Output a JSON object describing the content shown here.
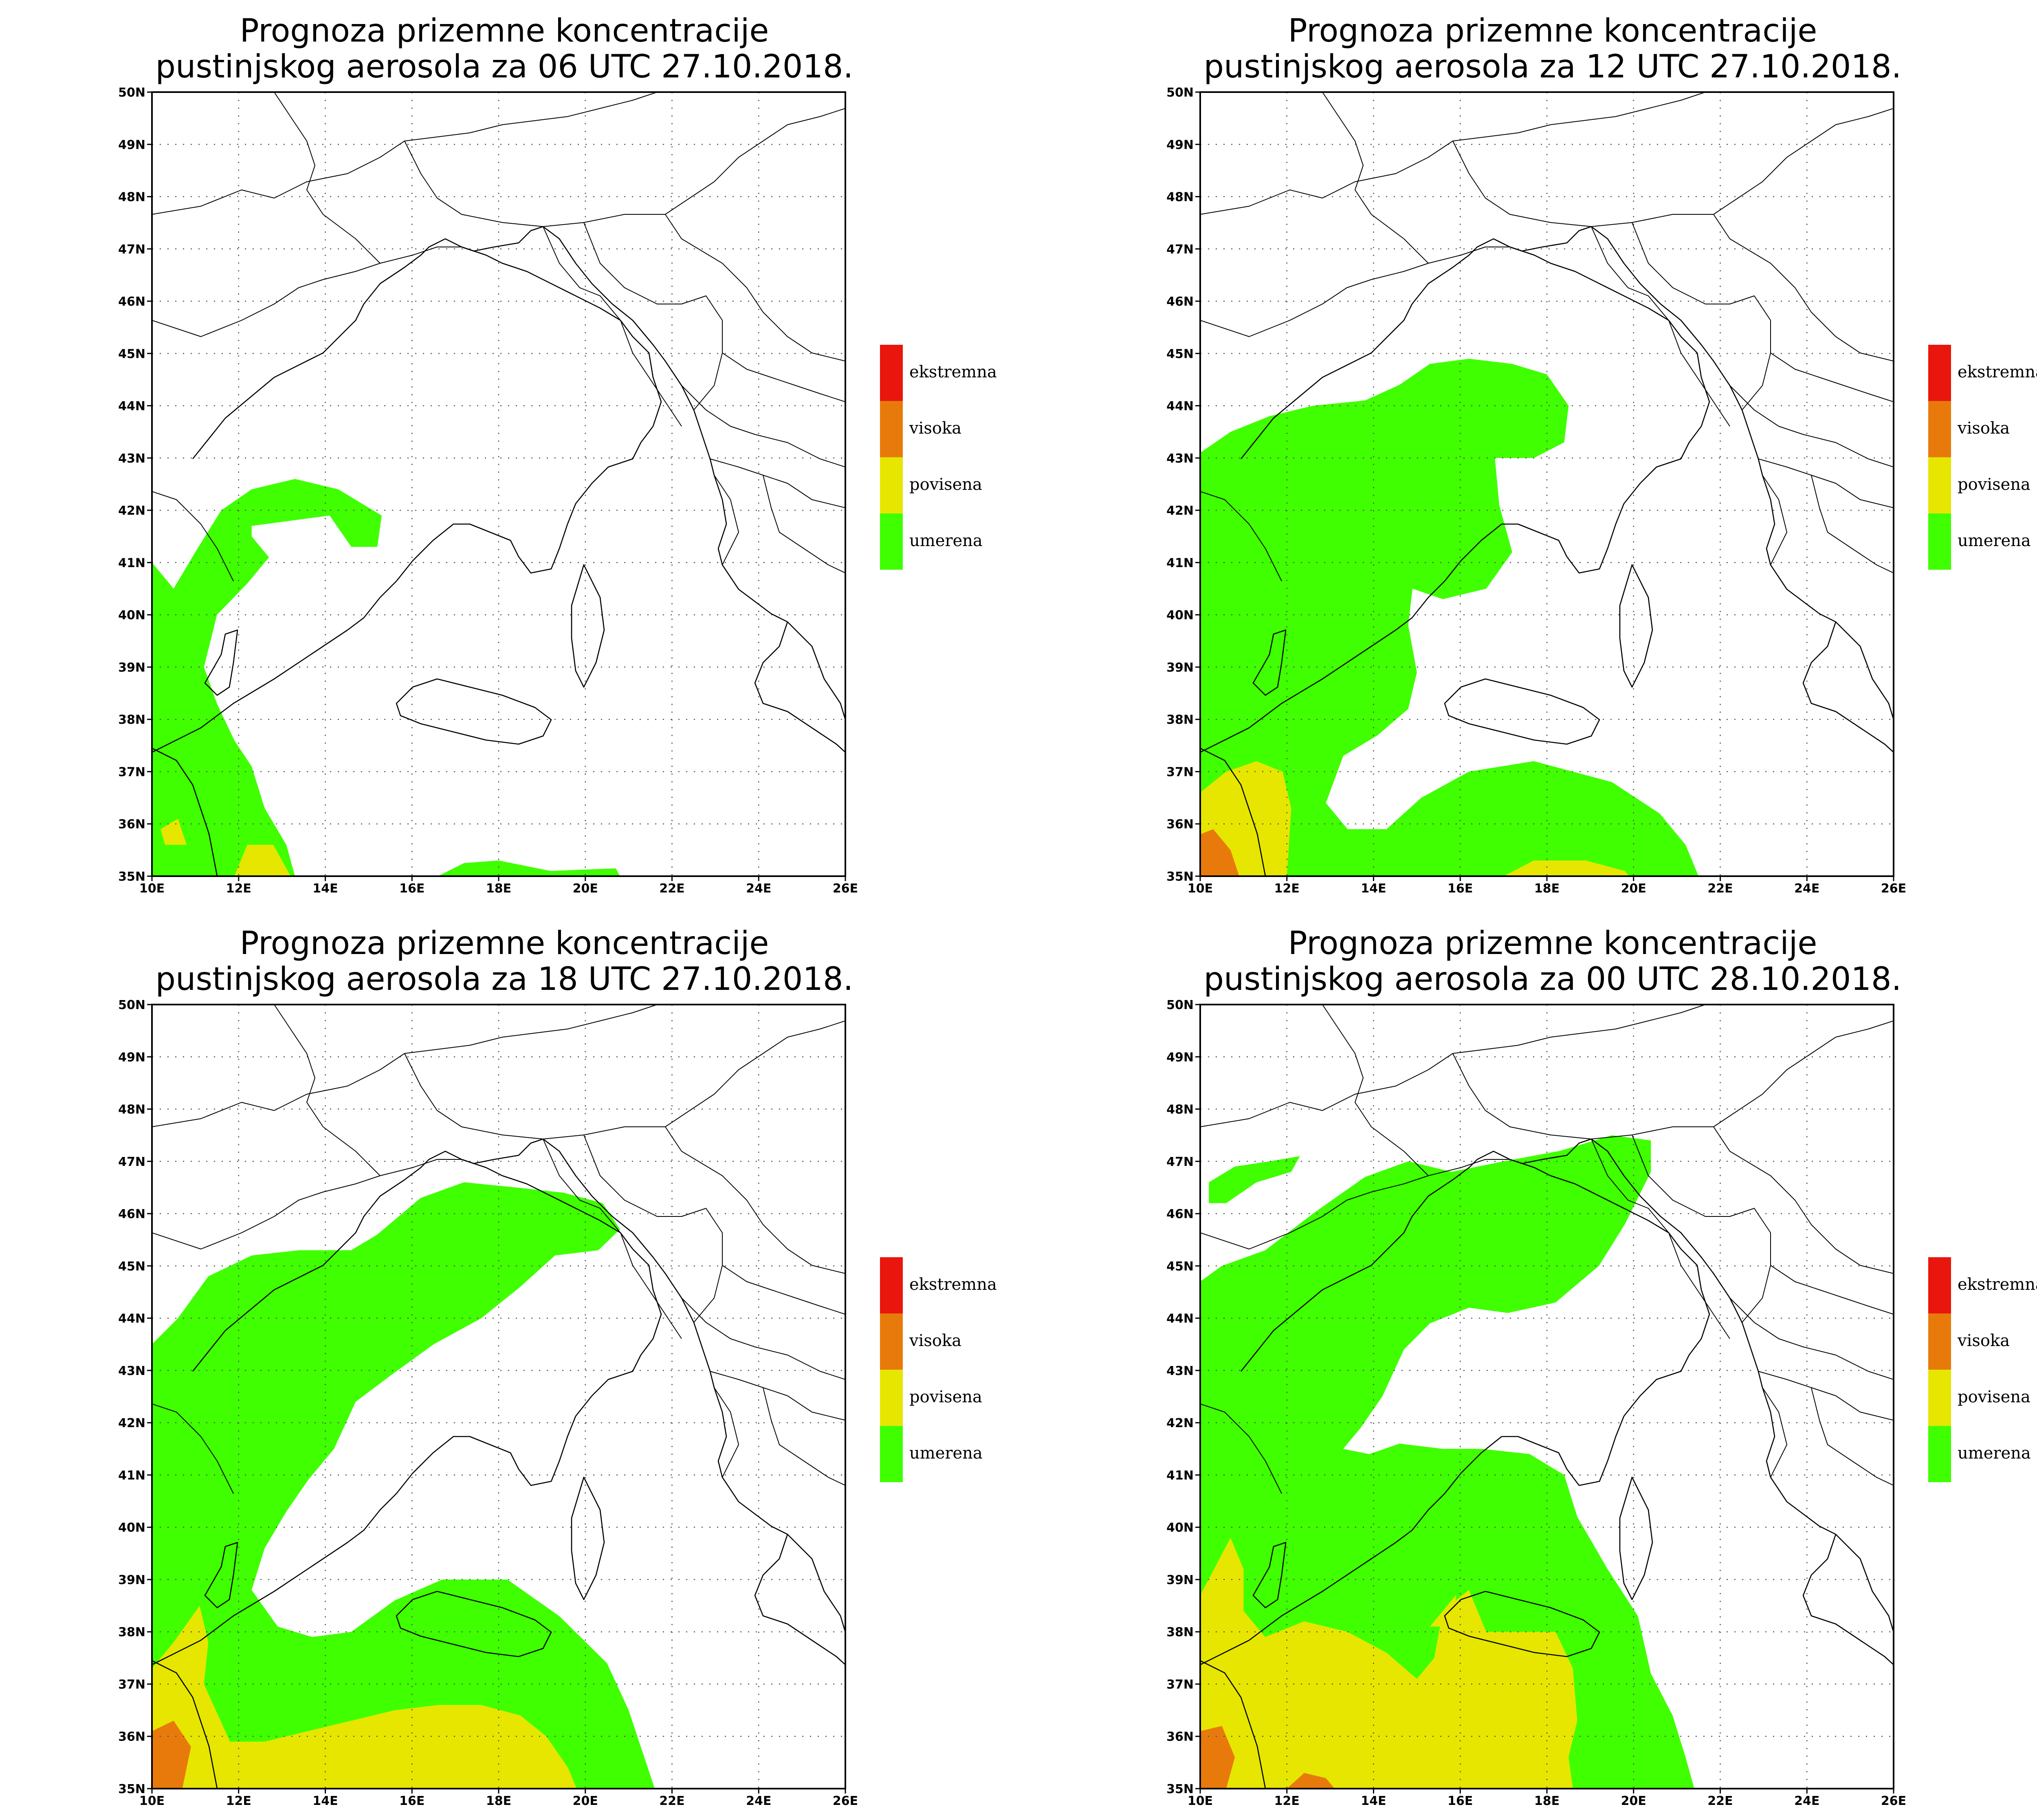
{
  "colors": {
    "umerena": "#3fff00",
    "povisena": "#e6e600",
    "visoka": "#e87a0c",
    "ekstremna": "#e8160c"
  },
  "axes": {
    "lon_ticks": [
      "10E",
      "12E",
      "14E",
      "16E",
      "18E",
      "20E",
      "22E",
      "24E",
      "26E"
    ],
    "lat_ticks": [
      "35N",
      "36N",
      "37N",
      "38N",
      "39N",
      "40N",
      "41N",
      "42N",
      "43N",
      "44N",
      "45N",
      "46N",
      "47N",
      "48N",
      "49N",
      "50N"
    ]
  },
  "legend": [
    {
      "key": "ekstremna",
      "label": "ekstremna"
    },
    {
      "key": "visoka",
      "label": "visoka"
    },
    {
      "key": "povisena",
      "label": "povisena"
    },
    {
      "key": "umerena",
      "label": "umerena"
    }
  ],
  "panels": [
    {
      "title_line1": "Prognoza prizemne koncentracije",
      "title_line2": "pustinjskog aerosola za 06 UTC 27.10.2018.",
      "zones": [
        {
          "level": "umerena",
          "pts": [
            [
              10,
              41.0
            ],
            [
              10.5,
              40.5
            ],
            [
              11.0,
              41.2
            ],
            [
              11.6,
              42.0
            ],
            [
              12.3,
              42.4
            ],
            [
              13.3,
              42.6
            ],
            [
              14.3,
              42.4
            ],
            [
              15.3,
              41.9
            ],
            [
              15.2,
              41.3
            ],
            [
              14.6,
              41.3
            ],
            [
              14.1,
              41.9
            ],
            [
              13.2,
              41.8
            ],
            [
              12.3,
              41.7
            ],
            [
              12.3,
              41.5
            ],
            [
              12.7,
              41.1
            ],
            [
              12.2,
              40.6
            ],
            [
              11.5,
              40.0
            ],
            [
              11.2,
              39.0
            ],
            [
              11.5,
              38.3
            ],
            [
              11.9,
              37.6
            ],
            [
              12.3,
              37.1
            ],
            [
              12.6,
              36.3
            ],
            [
              13.1,
              35.6
            ],
            [
              13.3,
              35
            ],
            [
              10,
              35
            ]
          ]
        },
        {
          "level": "umerena",
          "pts": [
            [
              16.6,
              35
            ],
            [
              17.2,
              35.25
            ],
            [
              18.0,
              35.3
            ],
            [
              19.2,
              35.1
            ],
            [
              20.7,
              35.15
            ],
            [
              20.8,
              35
            ]
          ]
        },
        {
          "level": "povisena",
          "pts": [
            [
              11.9,
              35
            ],
            [
              12.2,
              35.6
            ],
            [
              12.8,
              35.6
            ],
            [
              13.2,
              35
            ]
          ]
        },
        {
          "level": "povisena",
          "pts": [
            [
              10.2,
              35.9
            ],
            [
              10.6,
              36.1
            ],
            [
              10.8,
              35.6
            ],
            [
              10.3,
              35.6
            ]
          ]
        }
      ]
    },
    {
      "title_line1": "Prognoza prizemne koncentracije",
      "title_line2": "pustinjskog aerosola za 12 UTC 27.10.2018.",
      "zones": [
        {
          "level": "umerena",
          "pts": [
            [
              10,
              43.1
            ],
            [
              10.7,
              43.5
            ],
            [
              11.6,
              43.8
            ],
            [
              12.6,
              44.0
            ],
            [
              13.8,
              44.1
            ],
            [
              14.6,
              44.4
            ],
            [
              15.3,
              44.8
            ],
            [
              16.2,
              44.9
            ],
            [
              17.2,
              44.8
            ],
            [
              18.0,
              44.6
            ],
            [
              18.5,
              44.0
            ],
            [
              18.4,
              43.3
            ],
            [
              17.7,
              43.0
            ],
            [
              16.8,
              43.0
            ],
            [
              16.9,
              42.1
            ],
            [
              17.2,
              41.2
            ],
            [
              16.6,
              40.5
            ],
            [
              15.6,
              40.3
            ],
            [
              14.9,
              40.5
            ],
            [
              14.8,
              39.8
            ],
            [
              15.0,
              38.9
            ],
            [
              14.8,
              38.2
            ],
            [
              14.1,
              37.7
            ],
            [
              13.3,
              37.3
            ],
            [
              12.9,
              36.4
            ],
            [
              13.4,
              35.9
            ],
            [
              14.3,
              35.9
            ],
            [
              15.1,
              36.5
            ],
            [
              16.2,
              37.0
            ],
            [
              17.7,
              37.2
            ],
            [
              19.5,
              36.8
            ],
            [
              20.6,
              36.2
            ],
            [
              21.2,
              35.6
            ],
            [
              21.5,
              35
            ],
            [
              10,
              35
            ]
          ]
        },
        {
          "level": "povisena",
          "pts": [
            [
              10,
              36.6
            ],
            [
              10.6,
              37.0
            ],
            [
              11.3,
              37.2
            ],
            [
              11.9,
              37.0
            ],
            [
              12.1,
              36.3
            ],
            [
              12.0,
              35
            ],
            [
              17.0,
              35
            ],
            [
              17.7,
              35.3
            ],
            [
              18.9,
              35.3
            ],
            [
              19.8,
              35.1
            ],
            [
              19.9,
              35
            ],
            [
              10,
              35
            ]
          ]
        },
        {
          "level": "visoka",
          "pts": [
            [
              10,
              35.8
            ],
            [
              10.3,
              35.9
            ],
            [
              10.7,
              35.5
            ],
            [
              10.9,
              35
            ],
            [
              10,
              35
            ]
          ]
        }
      ]
    },
    {
      "title_line1": "Prognoza prizemne koncentracije",
      "title_line2": "pustinjskog aerosola za 18 UTC 27.10.2018.",
      "zones": [
        {
          "level": "umerena",
          "pts": [
            [
              10,
              43.5
            ],
            [
              10.6,
              44.0
            ],
            [
              11.3,
              44.8
            ],
            [
              12.3,
              45.2
            ],
            [
              13.4,
              45.3
            ],
            [
              14.6,
              45.3
            ],
            [
              15.2,
              45.6
            ],
            [
              16.2,
              46.3
            ],
            [
              17.2,
              46.6
            ],
            [
              18.4,
              46.5
            ],
            [
              19.5,
              46.4
            ],
            [
              20.4,
              46.2
            ],
            [
              20.8,
              45.7
            ],
            [
              20.3,
              45.3
            ],
            [
              19.3,
              45.2
            ],
            [
              18.5,
              44.6
            ],
            [
              17.6,
              44.0
            ],
            [
              16.5,
              43.5
            ],
            [
              15.5,
              42.9
            ],
            [
              14.7,
              42.4
            ],
            [
              14.2,
              41.5
            ],
            [
              13.6,
              40.9
            ],
            [
              13.1,
              40.3
            ],
            [
              12.6,
              39.6
            ],
            [
              12.3,
              38.8
            ],
            [
              12.9,
              38.1
            ],
            [
              13.7,
              37.9
            ],
            [
              14.6,
              38.0
            ],
            [
              15.6,
              38.6
            ],
            [
              16.7,
              39.0
            ],
            [
              18.2,
              39.0
            ],
            [
              19.4,
              38.3
            ],
            [
              20.5,
              37.4
            ],
            [
              21.0,
              36.5
            ],
            [
              21.4,
              35.5
            ],
            [
              21.6,
              35
            ],
            [
              10,
              35
            ]
          ]
        },
        {
          "level": "povisena",
          "pts": [
            [
              10,
              37.3
            ],
            [
              10.5,
              37.8
            ],
            [
              11.1,
              38.5
            ],
            [
              11.3,
              37.8
            ],
            [
              11.2,
              37.0
            ],
            [
              11.8,
              35.9
            ],
            [
              12.6,
              35.9
            ],
            [
              13.6,
              36.1
            ],
            [
              14.6,
              36.3
            ],
            [
              15.6,
              36.5
            ],
            [
              16.6,
              36.6
            ],
            [
              17.6,
              36.6
            ],
            [
              18.5,
              36.4
            ],
            [
              19.1,
              36.0
            ],
            [
              19.6,
              35.4
            ],
            [
              19.8,
              35
            ],
            [
              10,
              35
            ]
          ]
        },
        {
          "level": "visoka",
          "pts": [
            [
              10,
              36.1
            ],
            [
              10.5,
              36.3
            ],
            [
              10.9,
              35.8
            ],
            [
              10.7,
              35
            ],
            [
              10,
              35
            ]
          ]
        }
      ]
    },
    {
      "title_line1": "Prognoza prizemne koncentracije",
      "title_line2": "pustinjskog aerosola za 00 UTC 28.10.2018.",
      "zones": [
        {
          "level": "umerena",
          "pts": [
            [
              10,
              44.7
            ],
            [
              10.5,
              45.0
            ],
            [
              11.5,
              45.3
            ],
            [
              12.6,
              46.0
            ],
            [
              13.8,
              46.7
            ],
            [
              14.8,
              47.0
            ],
            [
              15.8,
              46.8
            ],
            [
              17.0,
              47.0
            ],
            [
              18.3,
              47.2
            ],
            [
              19.5,
              47.5
            ],
            [
              20.4,
              47.4
            ],
            [
              20.4,
              46.8
            ],
            [
              19.8,
              45.8
            ],
            [
              19.2,
              45.0
            ],
            [
              18.2,
              44.3
            ],
            [
              17.1,
              44.1
            ],
            [
              16.2,
              44.2
            ],
            [
              15.3,
              43.9
            ],
            [
              14.7,
              43.4
            ],
            [
              14.2,
              42.5
            ],
            [
              13.7,
              41.9
            ],
            [
              13.3,
              41.5
            ],
            [
              13.9,
              41.4
            ],
            [
              14.6,
              41.6
            ],
            [
              15.6,
              41.5
            ],
            [
              16.5,
              41.5
            ],
            [
              17.6,
              41.4
            ],
            [
              18.4,
              41.0
            ],
            [
              18.7,
              40.2
            ],
            [
              19.4,
              39.2
            ],
            [
              20.1,
              38.3
            ],
            [
              20.4,
              37.2
            ],
            [
              20.9,
              36.4
            ],
            [
              21.2,
              35.6
            ],
            [
              21.4,
              35
            ],
            [
              10,
              35
            ]
          ]
        },
        {
          "level": "umerena",
          "pts": [
            [
              10.2,
              46.6
            ],
            [
              10.8,
              46.9
            ],
            [
              11.6,
              47.0
            ],
            [
              12.3,
              47.1
            ],
            [
              12.1,
              46.8
            ],
            [
              11.3,
              46.6
            ],
            [
              10.6,
              46.2
            ],
            [
              10.2,
              46.2
            ]
          ]
        },
        {
          "level": "povisena",
          "pts": [
            [
              10,
              38.7
            ],
            [
              10.7,
              39.8
            ],
            [
              11.0,
              39.2
            ],
            [
              11.0,
              38.4
            ],
            [
              11.5,
              37.9
            ],
            [
              12.4,
              38.2
            ],
            [
              13.4,
              38.0
            ],
            [
              14.3,
              37.6
            ],
            [
              15.0,
              37.1
            ],
            [
              15.4,
              37.5
            ],
            [
              15.6,
              38.4
            ],
            [
              16.2,
              38.8
            ],
            [
              16.6,
              38.0
            ],
            [
              17.4,
              38.0
            ],
            [
              18.2,
              38.0
            ],
            [
              18.6,
              37.3
            ],
            [
              18.7,
              36.3
            ],
            [
              18.5,
              35.6
            ],
            [
              18.6,
              35
            ],
            [
              10,
              35
            ]
          ]
        },
        {
          "level": "povisena",
          "pts": [
            [
              15.3,
              38.1
            ],
            [
              15.9,
              38.7
            ],
            [
              15.9,
              38.1
            ]
          ]
        },
        {
          "level": "visoka",
          "pts": [
            [
              10,
              36.1
            ],
            [
              10.5,
              36.2
            ],
            [
              10.8,
              35.6
            ],
            [
              10.6,
              35
            ],
            [
              10,
              35
            ]
          ]
        },
        {
          "level": "visoka",
          "pts": [
            [
              12.0,
              35
            ],
            [
              12.4,
              35.3
            ],
            [
              12.9,
              35.2
            ],
            [
              13.1,
              35
            ]
          ]
        }
      ]
    }
  ]
}
